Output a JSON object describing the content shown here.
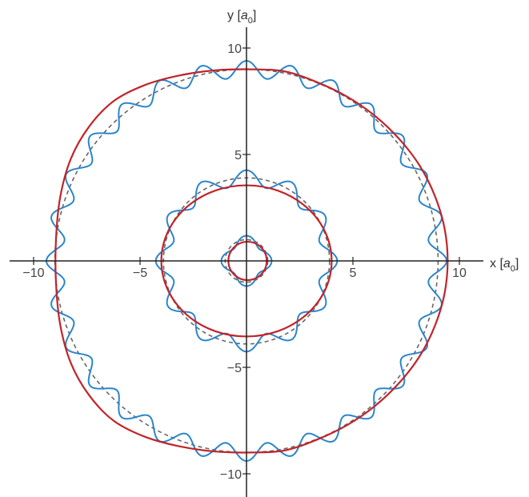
{
  "chart_data": {
    "type": "line",
    "xlabel": {
      "prefix": "x [",
      "var": "a",
      "sub": "0",
      "suffix": "]"
    },
    "ylabel": {
      "prefix": "y [",
      "var": "a",
      "sub": "0",
      "suffix": "]"
    },
    "xlim": [
      -10.0,
      10.0
    ],
    "ylim": [
      -11.0,
      11.0
    ],
    "xticks": [
      -10,
      -5,
      5,
      10
    ],
    "xtick_labels": [
      "−10",
      "−5",
      "5",
      "10"
    ],
    "yticks": [
      10,
      5,
      -5,
      -10
    ],
    "ytick_labels": [
      "10",
      "5",
      "−5",
      "−10"
    ],
    "grid": false,
    "colors": {
      "axis": "#222222",
      "dashed": "#666666",
      "wavy": "#2a86cc",
      "red": "#c0252a"
    },
    "series": [
      {
        "style": "dashed",
        "kind": "circle",
        "cx": 0,
        "cy": 0,
        "radii": [
          1.0,
          3.9,
          9.0
        ]
      },
      {
        "style": "wavy",
        "kind": "modulated-circle",
        "rings": [
          {
            "r0": 1.0,
            "amp": 0.18,
            "n": 4
          },
          {
            "r0": 3.9,
            "amp": 0.36,
            "n": 12
          },
          {
            "r0": 9.0,
            "amp": 0.4,
            "n": 28
          }
        ]
      },
      {
        "style": "solid-red",
        "kind": "ellipse",
        "rings": [
          {
            "cx": 0.05,
            "cy": 0.0,
            "rx": 0.9,
            "ry": 0.9
          },
          {
            "cx": 0.0,
            "cy": 0.0,
            "rx": 4.0,
            "ry": 3.55
          }
        ]
      },
      {
        "style": "solid-red",
        "kind": "closed-curve",
        "points": [
          [
            9.45,
            0.0
          ],
          [
            9.3,
            1.55
          ],
          [
            8.85,
            3.05
          ],
          [
            8.15,
            4.45
          ],
          [
            7.2,
            5.7
          ],
          [
            6.05,
            6.8
          ],
          [
            4.75,
            7.7
          ],
          [
            3.3,
            8.4
          ],
          [
            1.8,
            8.9
          ],
          [
            0.2,
            9.0
          ],
          [
            -1.5,
            8.95
          ],
          [
            -3.2,
            8.7
          ],
          [
            -4.8,
            8.25
          ],
          [
            -6.25,
            7.5
          ],
          [
            -7.4,
            6.3
          ],
          [
            -8.25,
            4.8
          ],
          [
            -8.75,
            3.0
          ],
          [
            -8.95,
            1.0
          ],
          [
            -8.95,
            -1.0
          ],
          [
            -8.75,
            -3.0
          ],
          [
            -8.25,
            -4.8
          ],
          [
            -7.4,
            -6.3
          ],
          [
            -6.25,
            -7.5
          ],
          [
            -4.8,
            -8.25
          ],
          [
            -3.2,
            -8.7
          ],
          [
            -1.5,
            -8.95
          ],
          [
            0.2,
            -9.0
          ],
          [
            1.8,
            -8.9
          ],
          [
            3.3,
            -8.4
          ],
          [
            4.75,
            -7.7
          ],
          [
            6.05,
            -6.8
          ],
          [
            7.2,
            -5.7
          ],
          [
            8.15,
            -4.45
          ],
          [
            8.85,
            -3.05
          ],
          [
            9.3,
            -1.55
          ]
        ]
      }
    ]
  }
}
